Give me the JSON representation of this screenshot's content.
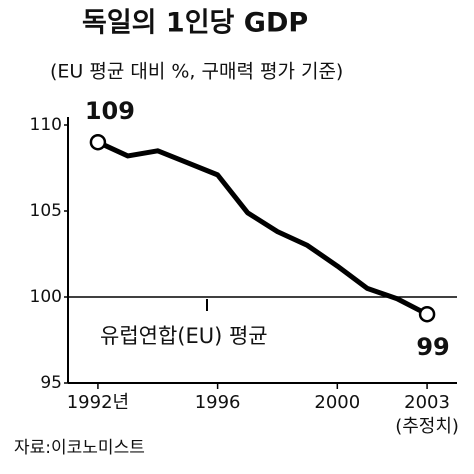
{
  "chart_data": {
    "type": "line",
    "title": "독일의 1인당 GDP",
    "subtitle": "(EU 평균 대비 %, 구매력 평가 기준)",
    "x": [
      1992,
      1993,
      1994,
      1995,
      1996,
      1997,
      1998,
      1999,
      2000,
      2001,
      2002,
      2003
    ],
    "values": [
      109,
      108.2,
      108.5,
      107.8,
      107.1,
      104.9,
      103.8,
      103.0,
      101.8,
      100.5,
      99.9,
      99
    ],
    "color": "#000000",
    "xlim": [
      1991,
      2004
    ],
    "xticks": [
      {
        "value": 1992,
        "label": "1992년"
      },
      1996,
      2000,
      2003
    ],
    "ylim": [
      95,
      110
    ],
    "yticks": [
      95,
      100,
      105,
      110
    ],
    "reference": {
      "value": 100,
      "label": "유럽연합(EU) 평균"
    },
    "annotation": "(추정치)",
    "source": "자료:이코노미스트"
  }
}
